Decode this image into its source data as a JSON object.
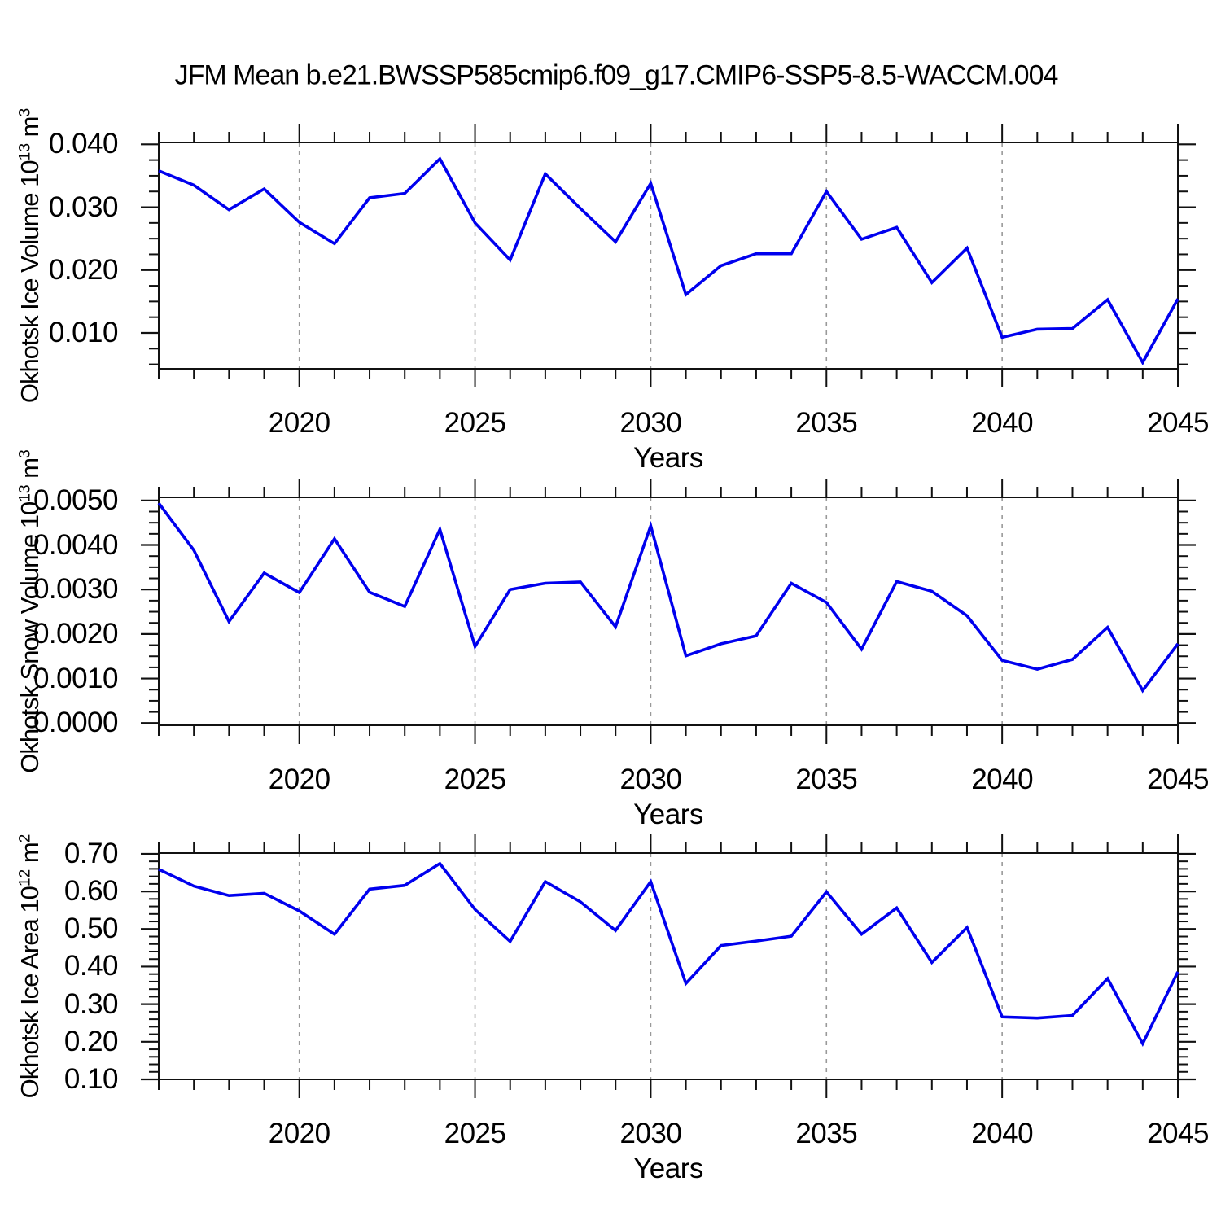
{
  "title": "JFM Mean b.e21.BWSSP585cmip6.f09_g17.CMIP6-SSP5-8.5-WACCM.004",
  "colors": {
    "line": "#0000ee",
    "grid": "#999999",
    "axis": "#111111",
    "text": "#000000",
    "background": "#ffffff"
  },
  "chart_data": [
    {
      "type": "line",
      "name": "okhotsk-ice-volume",
      "ylabel": "Okhotsk Ice Volume 10^13 m^3",
      "ylabel_parts": [
        {
          "t": "Okhotsk Ice Volume 10"
        },
        {
          "sup": "13"
        },
        {
          "t": " m"
        },
        {
          "sup": "3"
        }
      ],
      "xlabel": "Years",
      "years": [
        2016,
        2017,
        2018,
        2019,
        2020,
        2021,
        2022,
        2023,
        2024,
        2025,
        2026,
        2027,
        2028,
        2029,
        2030,
        2031,
        2032,
        2033,
        2034,
        2035,
        2036,
        2037,
        2038,
        2039,
        2040,
        2041,
        2042,
        2043,
        2044,
        2045
      ],
      "values": [
        0.0358,
        0.0335,
        0.0296,
        0.0329,
        0.0276,
        0.0242,
        0.0315,
        0.0322,
        0.0377,
        0.0275,
        0.0216,
        0.0353,
        0.0298,
        0.0245,
        0.0338,
        0.0161,
        0.0207,
        0.0226,
        0.0226,
        0.0325,
        0.0249,
        0.0268,
        0.018,
        0.0235,
        0.0093,
        0.0106,
        0.0107,
        0.0153,
        0.0053,
        0.0154
      ],
      "xlim": [
        2016,
        2045
      ],
      "ylim": [
        0.0043,
        0.0403
      ],
      "x_major_ticks": [
        2020,
        2025,
        2030,
        2035,
        2040,
        2045
      ],
      "x_tick_labels": [
        "2020",
        "2025",
        "2030",
        "2035",
        "2040",
        "2045"
      ],
      "grid_years": [
        2020,
        2025,
        2030,
        2035,
        2040
      ],
      "y_major_ticks": [
        0.01,
        0.02,
        0.03,
        0.04
      ],
      "y_tick_labels": [
        "0.010",
        "0.020",
        "0.030",
        "0.040"
      ],
      "y_minor_step": 0.0025
    },
    {
      "type": "line",
      "name": "okhotsk-snow-volume",
      "ylabel": "Okhotsk Snow Volume 10^13 m^3",
      "ylabel_parts": [
        {
          "t": "Okhotsk Snow Volume 10"
        },
        {
          "sup": "13"
        },
        {
          "t": " m"
        },
        {
          "sup": "3"
        }
      ],
      "xlabel": "Years",
      "years": [
        2016,
        2017,
        2018,
        2019,
        2020,
        2021,
        2022,
        2023,
        2024,
        2025,
        2026,
        2027,
        2028,
        2029,
        2030,
        2031,
        2032,
        2033,
        2034,
        2035,
        2036,
        2037,
        2038,
        2039,
        2040,
        2041,
        2042,
        2043,
        2044,
        2045
      ],
      "values": [
        0.00494,
        0.00388,
        0.00228,
        0.00337,
        0.00293,
        0.00414,
        0.00294,
        0.00262,
        0.00435,
        0.00172,
        0.003,
        0.00314,
        0.00317,
        0.00216,
        0.00443,
        0.00151,
        0.00178,
        0.00196,
        0.00314,
        0.00271,
        0.00166,
        0.00318,
        0.00296,
        0.00241,
        0.00141,
        0.00121,
        0.00143,
        0.00215,
        0.00073,
        0.00178
      ],
      "xlim": [
        2016,
        2045
      ],
      "ylim": [
        -5e-05,
        0.00507
      ],
      "x_major_ticks": [
        2020,
        2025,
        2030,
        2035,
        2040,
        2045
      ],
      "x_tick_labels": [
        "2020",
        "2025",
        "2030",
        "2035",
        "2040",
        "2045"
      ],
      "grid_years": [
        2020,
        2025,
        2030,
        2035,
        2040
      ],
      "y_major_ticks": [
        0.0,
        0.001,
        0.002,
        0.003,
        0.004,
        0.005
      ],
      "y_tick_labels": [
        "0.0000",
        "0.0010",
        "0.0020",
        "0.0030",
        "0.0040",
        "0.0050"
      ],
      "y_minor_step": 0.00025
    },
    {
      "type": "line",
      "name": "okhotsk-ice-area",
      "ylabel": "Okhotsk Ice Area 10^12 m^2",
      "ylabel_parts": [
        {
          "t": "Okhotsk Ice Area 10"
        },
        {
          "sup": "12"
        },
        {
          "t": " m"
        },
        {
          "sup": "2"
        }
      ],
      "xlabel": "Years",
      "years": [
        2016,
        2017,
        2018,
        2019,
        2020,
        2021,
        2022,
        2023,
        2024,
        2025,
        2026,
        2027,
        2028,
        2029,
        2030,
        2031,
        2032,
        2033,
        2034,
        2035,
        2036,
        2037,
        2038,
        2039,
        2040,
        2041,
        2042,
        2043,
        2044,
        2045
      ],
      "values": [
        0.659,
        0.614,
        0.589,
        0.595,
        0.548,
        0.486,
        0.606,
        0.616,
        0.674,
        0.552,
        0.467,
        0.626,
        0.572,
        0.496,
        0.626,
        0.355,
        0.456,
        0.468,
        0.481,
        0.599,
        0.486,
        0.556,
        0.411,
        0.504,
        0.266,
        0.263,
        0.27,
        0.368,
        0.195,
        0.386
      ],
      "xlim": [
        2016,
        2045
      ],
      "ylim": [
        0.1,
        0.702
      ],
      "x_major_ticks": [
        2020,
        2025,
        2030,
        2035,
        2040,
        2045
      ],
      "x_tick_labels": [
        "2020",
        "2025",
        "2030",
        "2035",
        "2040",
        "2045"
      ],
      "grid_years": [
        2020,
        2025,
        2030,
        2035,
        2040
      ],
      "y_major_ticks": [
        0.1,
        0.2,
        0.3,
        0.4,
        0.5,
        0.6,
        0.7
      ],
      "y_tick_labels": [
        "0.10",
        "0.20",
        "0.30",
        "0.40",
        "0.50",
        "0.60",
        "0.70"
      ],
      "y_minor_step": 0.02
    }
  ]
}
